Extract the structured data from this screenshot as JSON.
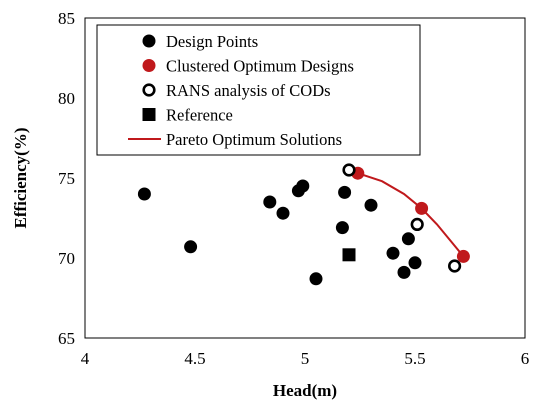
{
  "chart_data": {
    "type": "scatter",
    "xlabel": "Head(m)",
    "ylabel": "Efficiency(%)",
    "xlim": [
      4,
      6
    ],
    "ylim": [
      65,
      85
    ],
    "x_ticks": [
      "4",
      "4.5",
      "5",
      "5.5",
      "6"
    ],
    "y_ticks": [
      "65",
      "70",
      "75",
      "80",
      "85"
    ],
    "grid": false,
    "legend_position": "top",
    "series": [
      {
        "name": "Design Points",
        "marker": "filled-circle",
        "color": "#000000",
        "points": [
          [
            4.27,
            74.0
          ],
          [
            4.48,
            70.7
          ],
          [
            4.84,
            73.5
          ],
          [
            4.9,
            72.8
          ],
          [
            4.97,
            74.2
          ],
          [
            4.99,
            74.5
          ],
          [
            5.05,
            68.7
          ],
          [
            5.17,
            71.9
          ],
          [
            5.18,
            74.1
          ],
          [
            5.3,
            73.3
          ],
          [
            5.4,
            70.3
          ],
          [
            5.45,
            69.1
          ],
          [
            5.47,
            71.2
          ],
          [
            5.5,
            69.7
          ]
        ]
      },
      {
        "name": "Clustered Optimum Designs",
        "marker": "filled-circle",
        "color": "#c0191c",
        "points": [
          [
            5.24,
            75.3
          ],
          [
            5.53,
            73.1
          ],
          [
            5.72,
            70.1
          ]
        ]
      },
      {
        "name": "RANS analysis of CODs",
        "marker": "open-circle",
        "color": "#000000",
        "points": [
          [
            5.2,
            75.5
          ],
          [
            5.51,
            72.1
          ],
          [
            5.68,
            69.5
          ]
        ]
      },
      {
        "name": "Reference",
        "marker": "filled-square",
        "color": "#000000",
        "points": [
          [
            5.2,
            70.2
          ]
        ]
      },
      {
        "name": "Pareto Optimum Solutions",
        "marker": "line",
        "color": "#c0191c",
        "points": [
          [
            5.24,
            75.3
          ],
          [
            5.35,
            74.8
          ],
          [
            5.45,
            74.0
          ],
          [
            5.53,
            73.1
          ],
          [
            5.6,
            72.1
          ],
          [
            5.66,
            71.1
          ],
          [
            5.72,
            70.1
          ]
        ]
      }
    ]
  }
}
